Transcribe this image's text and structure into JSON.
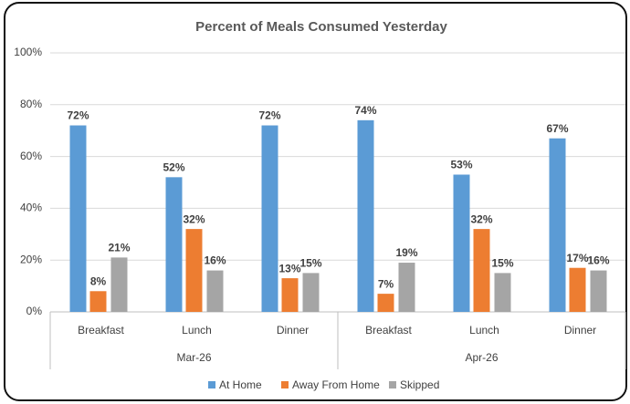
{
  "chart_data": {
    "type": "bar",
    "title": "Percent of Meals Consumed Yesterday",
    "categories": [
      "Breakfast",
      "Lunch",
      "Dinner",
      "Breakfast",
      "Lunch",
      "Dinner"
    ],
    "groups": [
      "Mar-26",
      "Apr-26"
    ],
    "series": [
      {
        "name": "At Home",
        "color": "#5b9bd5",
        "values": [
          72,
          52,
          72,
          74,
          53,
          67
        ],
        "value_labels": [
          "72%",
          "52%",
          "72%",
          "74%",
          "53%",
          "67%"
        ]
      },
      {
        "name": "Away From Home",
        "color": "#ed7d31",
        "values": [
          8,
          32,
          13,
          7,
          32,
          17
        ],
        "value_labels": [
          "8%",
          "32%",
          "13%",
          "7%",
          "32%",
          "17%"
        ]
      },
      {
        "name": "Skipped",
        "color": "#a5a5a5",
        "values": [
          21,
          16,
          15,
          19,
          15,
          16
        ],
        "value_labels": [
          "21%",
          "16%",
          "15%",
          "19%",
          "15%",
          "16%"
        ]
      }
    ],
    "ylim": [
      0,
      100
    ],
    "yticks": [
      {
        "value": 0,
        "label": "0%"
      },
      {
        "value": 20,
        "label": "20%"
      },
      {
        "value": 40,
        "label": "40%"
      },
      {
        "value": 60,
        "label": "60%"
      },
      {
        "value": 80,
        "label": "80%"
      },
      {
        "value": 100,
        "label": "100%"
      }
    ],
    "grid": true,
    "legend": "bottom"
  }
}
